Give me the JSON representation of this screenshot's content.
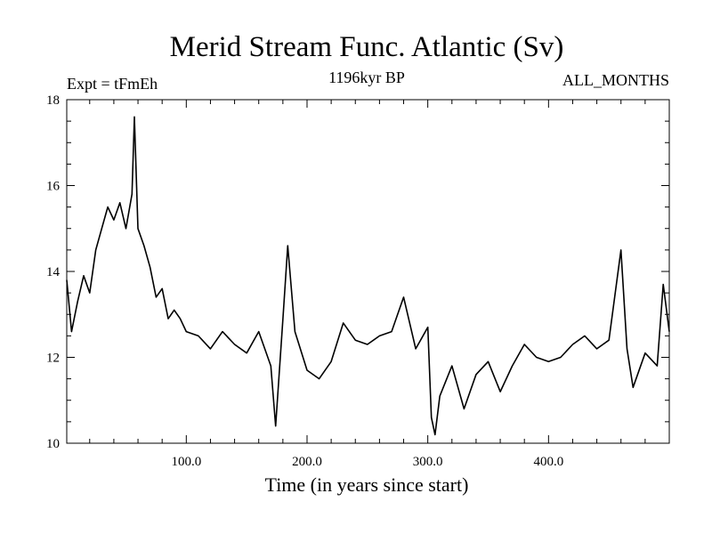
{
  "chart_data": {
    "type": "line",
    "title": "Merid Stream Func. Atlantic (Sv)",
    "subtitle": "1196kyr BP",
    "left_label": "Expt = tFmEh",
    "right_label": "ALL_MONTHS",
    "xlabel": "Time (in years since start)",
    "ylabel": "",
    "xlim": [
      1,
      500
    ],
    "ylim": [
      10,
      18
    ],
    "x_ticks": [
      100,
      200,
      300,
      400
    ],
    "x_tick_labels": [
      "100.0",
      "200.0",
      "300.0",
      "400.0"
    ],
    "y_ticks": [
      10,
      12,
      14,
      16,
      18
    ],
    "y_tick_labels": [
      "10",
      "12",
      "14",
      "16",
      "18"
    ],
    "grid": false,
    "line_color": "#000000",
    "series": [
      {
        "name": "Merid Stream Func. Atlantic",
        "x": [
          1,
          5,
          10,
          15,
          20,
          25,
          30,
          35,
          40,
          45,
          50,
          55,
          57,
          60,
          65,
          70,
          75,
          80,
          85,
          90,
          95,
          100,
          110,
          120,
          130,
          140,
          150,
          160,
          170,
          174,
          180,
          184,
          190,
          200,
          210,
          220,
          230,
          240,
          250,
          260,
          270,
          280,
          290,
          300,
          303,
          306,
          310,
          320,
          330,
          340,
          350,
          360,
          370,
          380,
          390,
          400,
          410,
          420,
          430,
          440,
          450,
          460,
          465,
          470,
          480,
          490,
          495,
          500
        ],
        "values": [
          13.8,
          12.6,
          13.3,
          13.9,
          13.5,
          14.5,
          15.0,
          15.5,
          15.2,
          15.6,
          15.0,
          15.8,
          17.6,
          15.0,
          14.6,
          14.1,
          13.4,
          13.6,
          12.9,
          13.1,
          12.9,
          12.6,
          12.5,
          12.2,
          12.6,
          12.3,
          12.1,
          12.6,
          11.8,
          10.4,
          12.9,
          14.6,
          12.6,
          11.7,
          11.5,
          11.9,
          12.8,
          12.4,
          12.3,
          12.5,
          12.6,
          13.4,
          12.2,
          12.7,
          10.6,
          10.2,
          11.1,
          11.8,
          10.8,
          11.6,
          11.9,
          11.2,
          11.8,
          12.3,
          12.0,
          11.9,
          12.0,
          12.3,
          12.5,
          12.2,
          12.4,
          14.5,
          12.2,
          11.3,
          12.1,
          11.8,
          13.7,
          12.6
        ]
      }
    ]
  }
}
